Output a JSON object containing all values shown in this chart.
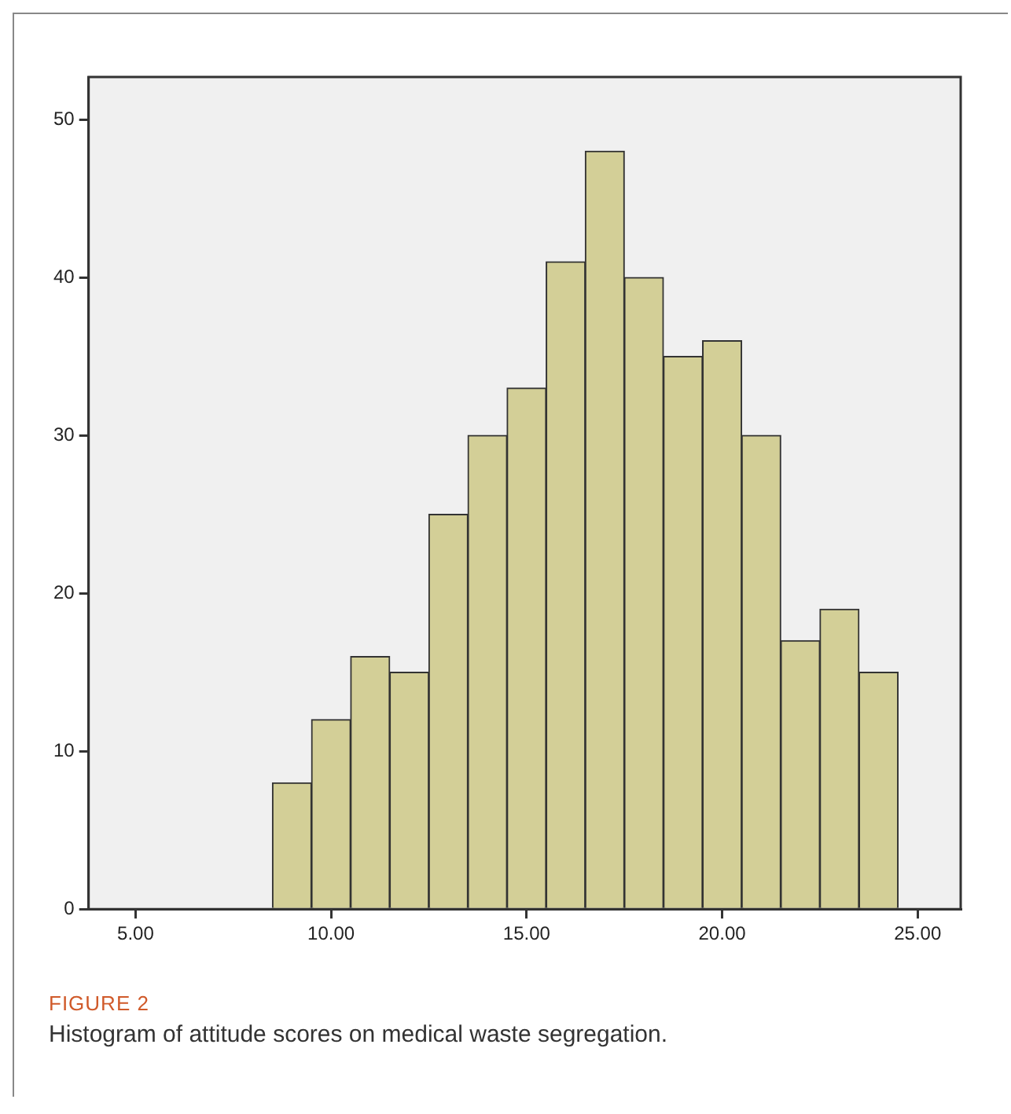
{
  "chart_data": {
    "type": "histogram",
    "bins": [
      8.5,
      9.5,
      10.5,
      11.5,
      12.5,
      13.5,
      14.5,
      15.5,
      16.5,
      17.5,
      18.5,
      19.5,
      20.5,
      21.5,
      22.5,
      23.5,
      24.5
    ],
    "values": [
      8,
      12,
      16,
      15,
      25,
      30,
      33,
      41,
      48,
      40,
      35,
      36,
      30,
      17,
      19,
      15
    ],
    "color": "#d3cf97",
    "xlim": [
      3.8,
      26.1
    ],
    "xticks": [
      {
        "value": 5,
        "label": "5.00"
      },
      {
        "value": 10,
        "label": "10.00"
      },
      {
        "value": 15,
        "label": "15.00"
      },
      {
        "value": 20,
        "label": "20.00"
      },
      {
        "value": 25,
        "label": "25.00"
      }
    ],
    "ylim": [
      0,
      52.7
    ],
    "yticks": [
      0,
      10,
      20,
      30,
      40,
      50
    ],
    "grid": false,
    "legend": false,
    "annotations": [
      "FIGURE 2",
      "Histogram of attitude scores on medical waste segregation."
    ]
  }
}
